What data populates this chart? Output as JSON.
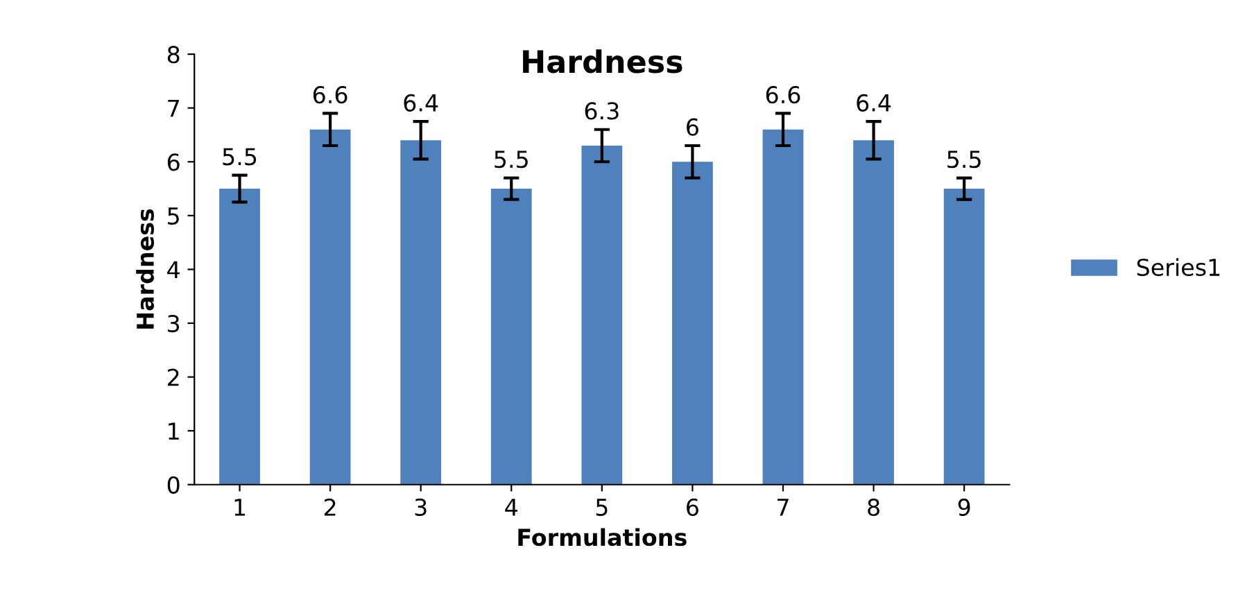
{
  "chart_data": {
    "type": "bar",
    "title": "Hardness",
    "xlabel": "Formulations",
    "ylabel": "Hardness",
    "categories": [
      "1",
      "2",
      "3",
      "4",
      "5",
      "6",
      "7",
      "8",
      "9"
    ],
    "series": [
      {
        "name": "Series1",
        "color": "#4f81bd",
        "values": [
          5.5,
          6.6,
          6.4,
          5.5,
          6.3,
          6,
          6.6,
          6.4,
          5.5
        ],
        "errors": [
          0.25,
          0.3,
          0.35,
          0.2,
          0.3,
          0.3,
          0.3,
          0.35,
          0.2
        ]
      }
    ],
    "data_labels": true,
    "ylim": [
      0,
      8
    ],
    "yticks": [
      0,
      1,
      2,
      3,
      4,
      5,
      6,
      7,
      8
    ],
    "grid": false,
    "legend": "right"
  }
}
